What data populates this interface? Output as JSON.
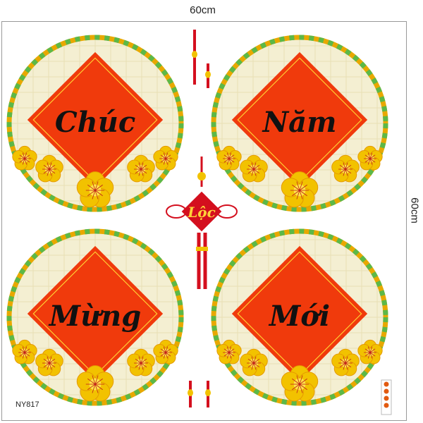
{
  "dimensions": {
    "width_label": "60cm",
    "height_label": "60cm"
  },
  "product_code": "NY817",
  "colors": {
    "red": "#f03a0c",
    "dark_red": "#d40f1e",
    "gold": "#f2c200",
    "green": "#5cb848",
    "weave": "#f4efd2",
    "ink": "#111111"
  },
  "panels": [
    {
      "word": "Chúc"
    },
    {
      "word": "Năm"
    },
    {
      "word": "Mừng"
    },
    {
      "word": "Mới"
    }
  ],
  "ornament": {
    "word": "Lộc"
  }
}
